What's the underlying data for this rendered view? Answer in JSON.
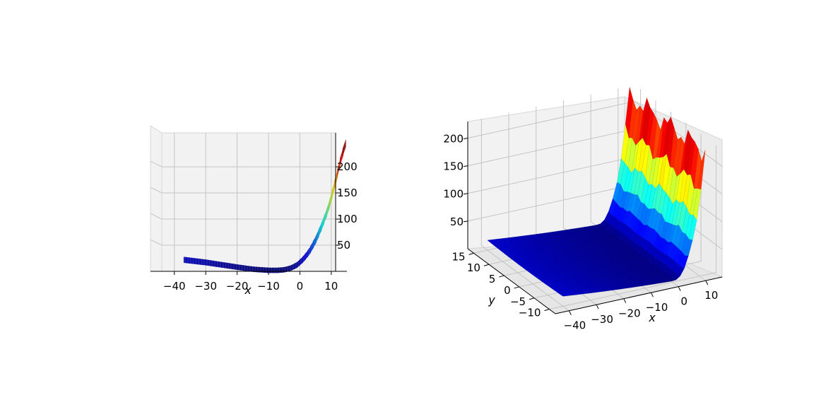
{
  "chart_data": [
    {
      "type": "surface3d",
      "view": "side view looking along y (x–z projection)",
      "colormap": "jet",
      "xlabel": "x",
      "ylabel": "",
      "zlabel": "",
      "x_ticks": [
        "−40",
        "−30",
        "−20",
        "−10",
        "0",
        "10"
      ],
      "z_ticks": [
        "50",
        "100",
        "150",
        "200"
      ],
      "x_tick_values": [
        -40,
        -30,
        -20,
        -10,
        0,
        10
      ],
      "z_tick_values": [
        50,
        100,
        150,
        200
      ],
      "xlim": [
        -44,
        15
      ],
      "zlim": [
        0,
        265
      ],
      "profile": {
        "x": [
          -37,
          -30,
          -20,
          -15,
          -10,
          -7,
          -5,
          -3,
          -1,
          1,
          3,
          5,
          7,
          9,
          11,
          13,
          14.5
        ],
        "z": [
          22,
          17,
          8,
          4,
          2,
          2,
          3,
          6,
          12,
          23,
          38,
          60,
          88,
          120,
          165,
          215,
          245
        ]
      }
    },
    {
      "type": "surface3d",
      "view": "perspective",
      "colormap": "jet",
      "xlabel": "x",
      "ylabel": "y",
      "zlabel": "",
      "x_ticks": [
        "−40",
        "−30",
        "−20",
        "−10",
        "0",
        "10"
      ],
      "y_ticks": [
        "−10",
        "−5",
        "0",
        "5",
        "10",
        "15"
      ],
      "z_ticks": [
        "50",
        "100",
        "150",
        "200"
      ],
      "x_tick_values": [
        -40,
        -30,
        -20,
        -10,
        0,
        10
      ],
      "y_tick_values": [
        -10,
        -5,
        0,
        5,
        10,
        15
      ],
      "z_tick_values": [
        50,
        100,
        150,
        200
      ],
      "xlim": [
        -45,
        16
      ],
      "ylim": [
        -12,
        17
      ],
      "zlim": [
        0,
        230
      ],
      "surface": {
        "x_range": [
          -40,
          12
        ],
        "y_range": [
          -10,
          15
        ],
        "z_min": 0,
        "z_max": 222
      }
    }
  ]
}
